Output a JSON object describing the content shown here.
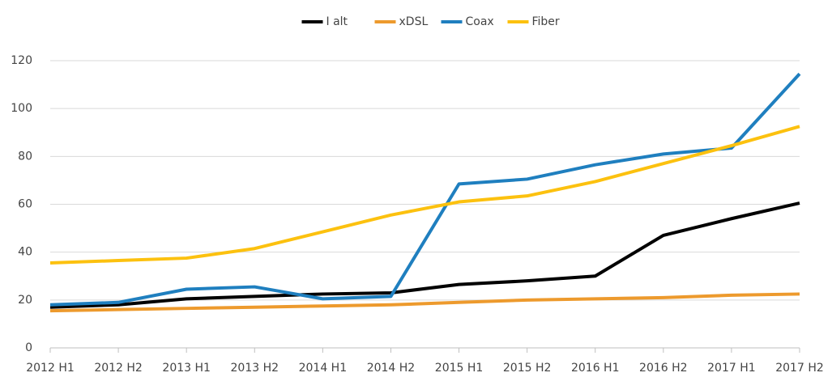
{
  "chart_data": {
    "type": "line",
    "categories": [
      "2012 H1",
      "2012 H2",
      "2013 H1",
      "2013 H2",
      "2014 H1",
      "2014 H2",
      "2015 H1",
      "2015 H2",
      "2016 H1",
      "2016 H2",
      "2017 H1",
      "2017 H2"
    ],
    "series": [
      {
        "name": "I alt",
        "color": "#000000",
        "values": [
          17,
          18,
          20.5,
          21.5,
          22.5,
          23,
          26.5,
          28,
          30,
          47,
          54,
          60.5
        ]
      },
      {
        "name": "xDSL",
        "color": "#ed9a2d",
        "values": [
          15.5,
          16,
          16.5,
          17,
          17.5,
          18,
          19,
          20,
          20.5,
          21,
          22,
          22.5
        ]
      },
      {
        "name": "Coax",
        "color": "#1f7fbf",
        "values": [
          18,
          19,
          24.5,
          25.5,
          20.5,
          21.5,
          68.5,
          70.5,
          76.5,
          81,
          83.5,
          114.5
        ]
      },
      {
        "name": "Fiber",
        "color": "#fcc10f",
        "values": [
          35.5,
          36.5,
          37.5,
          41.5,
          48.5,
          55.5,
          61,
          63.5,
          69.5,
          77,
          84.5,
          92.5
        ]
      }
    ],
    "ylim": [
      0,
      120
    ],
    "yticks": [
      0,
      20,
      40,
      60,
      80,
      100,
      120
    ],
    "grid": true,
    "legend": "top"
  }
}
